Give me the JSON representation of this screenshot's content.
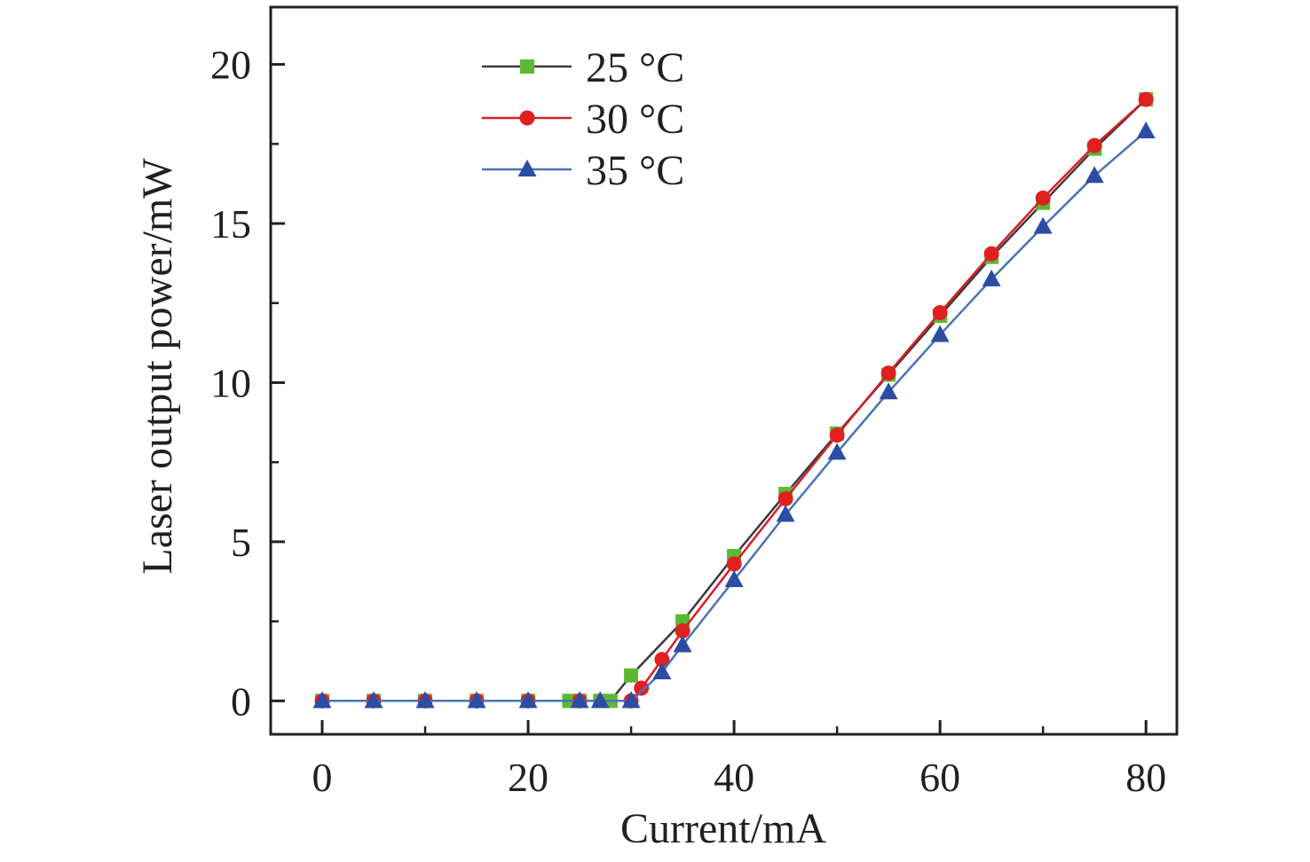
{
  "chart_data": {
    "type": "line",
    "title": "",
    "xlabel": "Current/mA",
    "ylabel": "Laser output power/mW",
    "xlim": [
      -5,
      83
    ],
    "ylim": [
      -1.05,
      21.8
    ],
    "xticks": [
      0,
      20,
      40,
      60,
      80
    ],
    "yticks": [
      0,
      5,
      10,
      15,
      20
    ],
    "x_minor_ticks": [
      10,
      30,
      50,
      70
    ],
    "y_minor_ticks": [
      2.5,
      7.5,
      12.5,
      17.5
    ],
    "grid": false,
    "legend_position": "top-left",
    "series": [
      {
        "name": "25 °C",
        "line_color": "#3a3a3a",
        "marker_color": "#5bb833",
        "marker": "square",
        "x": [
          0,
          5,
          10,
          15,
          20,
          24,
          25,
          27,
          28,
          30,
          35,
          40,
          45,
          50,
          55,
          60,
          65,
          70,
          75,
          80
        ],
        "y": [
          0,
          0,
          0,
          0,
          0,
          0,
          0,
          0,
          0,
          0.8,
          2.5,
          4.55,
          6.5,
          8.4,
          10.25,
          12.1,
          13.95,
          15.65,
          17.35,
          18.9
        ]
      },
      {
        "name": "30 °C",
        "line_color": "#d71e28",
        "marker_color": "#e02020",
        "marker": "circle",
        "x": [
          0,
          5,
          10,
          15,
          20,
          25,
          30,
          31,
          33,
          35,
          40,
          45,
          50,
          55,
          60,
          65,
          70,
          75,
          80
        ],
        "y": [
          0,
          0,
          0,
          0,
          0,
          0,
          0,
          0.4,
          1.3,
          2.2,
          4.3,
          6.35,
          8.35,
          10.3,
          12.2,
          14.05,
          15.8,
          17.45,
          18.9
        ]
      },
      {
        "name": "35 °C",
        "line_color": "#4a72b8",
        "marker_color": "#2b4ea3",
        "marker": "triangle",
        "x": [
          0,
          5,
          10,
          15,
          20,
          25,
          27,
          30,
          33,
          35,
          40,
          45,
          50,
          55,
          60,
          65,
          70,
          75,
          80
        ],
        "y": [
          0,
          0,
          0,
          0,
          0,
          0,
          0,
          0,
          0.9,
          1.75,
          3.8,
          5.85,
          7.8,
          9.7,
          11.5,
          13.25,
          14.9,
          16.5,
          17.9
        ]
      }
    ]
  }
}
